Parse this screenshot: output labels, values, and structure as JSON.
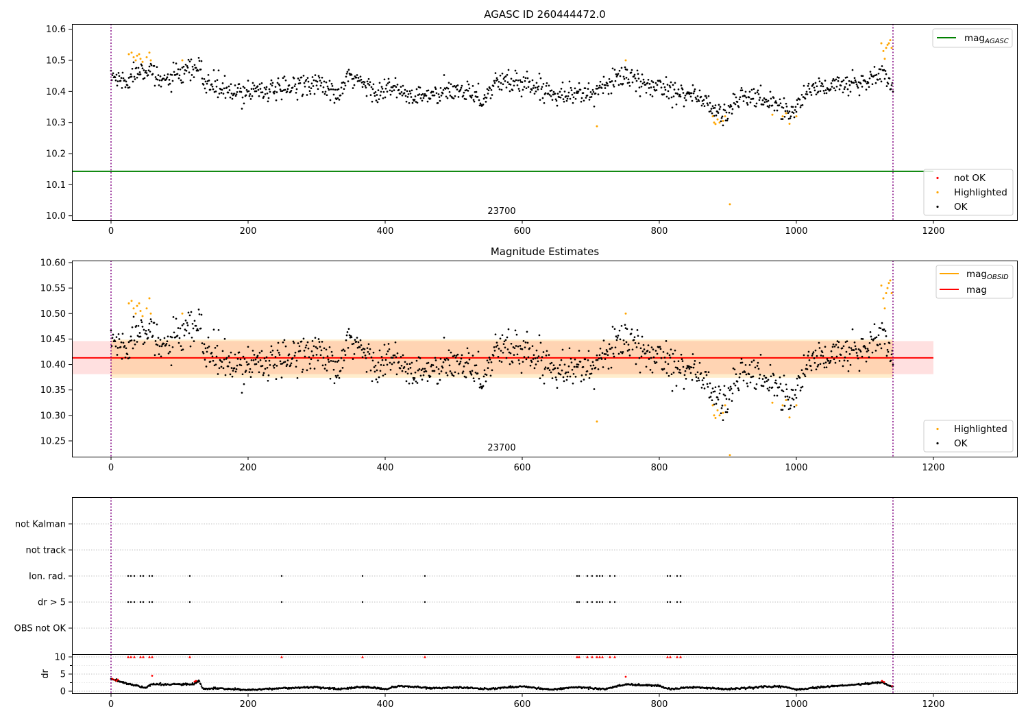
{
  "chart_data": [
    {
      "type": "scatter",
      "title": "AGASC ID 260444472.0",
      "xlabel": "",
      "ylabel": "",
      "xlim": [
        -57,
        1323
      ],
      "ylim": [
        9.986,
        10.617
      ],
      "xticks": [
        0,
        200,
        400,
        600,
        800,
        1000,
        1200
      ],
      "yticks": [
        10.0,
        10.1,
        10.2,
        10.3,
        10.4,
        10.5,
        10.6
      ],
      "ytick_decimals": 1,
      "obsid_label": "23700",
      "obsid_label_x": 570,
      "vlines": [
        0,
        1141
      ],
      "hlines": [
        {
          "name": "mag_AGASC",
          "value": 10.143,
          "color": "#008000"
        }
      ],
      "legend_lines": [
        {
          "label": "mag",
          "sub": "AGASC",
          "color": "#008000"
        }
      ],
      "legend_points": [
        {
          "label": "not OK",
          "color": "#ff0000"
        },
        {
          "label": "Highlighted",
          "color": "#ffa500"
        },
        {
          "label": "OK",
          "color": "#000000"
        }
      ],
      "highlighted_points": [
        [
          26,
          10.52
        ],
        [
          30,
          10.525
        ],
        [
          33,
          10.51
        ],
        [
          36,
          10.5
        ],
        [
          38,
          10.515
        ],
        [
          41,
          10.52
        ],
        [
          43,
          10.505
        ],
        [
          46,
          10.495
        ],
        [
          52,
          10.51
        ],
        [
          56,
          10.525
        ],
        [
          58,
          10.5
        ],
        [
          104,
          10.5
        ],
        [
          709,
          10.288
        ],
        [
          751,
          10.5
        ],
        [
          878,
          10.32
        ],
        [
          880,
          10.3
        ],
        [
          882,
          10.295
        ],
        [
          885,
          10.31
        ],
        [
          888,
          10.3
        ],
        [
          893,
          10.305
        ],
        [
          896,
          10.32
        ],
        [
          903,
          10.037
        ],
        [
          965,
          10.325
        ],
        [
          980,
          10.32
        ],
        [
          985,
          10.33
        ],
        [
          990,
          10.296
        ],
        [
          1000,
          10.32
        ],
        [
          1124,
          10.555
        ],
        [
          1127,
          10.53
        ],
        [
          1129,
          10.505
        ],
        [
          1131,
          10.54
        ],
        [
          1133,
          10.55
        ],
        [
          1135,
          10.555
        ],
        [
          1137,
          10.565
        ],
        [
          1139,
          10.54
        ]
      ],
      "ok_trend": [
        [
          0,
          10.45
        ],
        [
          20,
          10.43
        ],
        [
          45,
          10.48
        ],
        [
          60,
          10.47
        ],
        [
          65,
          10.43
        ],
        [
          100,
          10.45
        ],
        [
          130,
          10.48
        ],
        [
          135,
          10.43
        ],
        [
          160,
          10.41
        ],
        [
          180,
          10.39
        ],
        [
          210,
          10.41
        ],
        [
          250,
          10.4
        ],
        [
          280,
          10.43
        ],
        [
          310,
          10.42
        ],
        [
          330,
          10.38
        ],
        [
          350,
          10.45
        ],
        [
          370,
          10.42
        ],
        [
          390,
          10.4
        ],
        [
          410,
          10.41
        ],
        [
          440,
          10.38
        ],
        [
          480,
          10.39
        ],
        [
          520,
          10.41
        ],
        [
          545,
          10.37
        ],
        [
          560,
          10.43
        ],
        [
          600,
          10.43
        ],
        [
          640,
          10.4
        ],
        [
          690,
          10.39
        ],
        [
          720,
          10.41
        ],
        [
          745,
          10.46
        ],
        [
          770,
          10.42
        ],
        [
          800,
          10.42
        ],
        [
          830,
          10.4
        ],
        [
          860,
          10.38
        ],
        [
          885,
          10.33
        ],
        [
          900,
          10.33
        ],
        [
          920,
          10.39
        ],
        [
          950,
          10.37
        ],
        [
          970,
          10.37
        ],
        [
          985,
          10.33
        ],
        [
          1000,
          10.35
        ],
        [
          1020,
          10.41
        ],
        [
          1060,
          10.42
        ],
        [
          1100,
          10.43
        ],
        [
          1125,
          10.46
        ],
        [
          1141,
          10.41
        ]
      ]
    },
    {
      "type": "scatter",
      "title": "Magnitude Estimates",
      "xlabel": "",
      "ylabel": "",
      "xlim": [
        -57,
        1323
      ],
      "ylim": [
        10.219,
        10.604
      ],
      "xticks": [
        0,
        200,
        400,
        600,
        800,
        1000,
        1200
      ],
      "yticks": [
        10.25,
        10.3,
        10.35,
        10.4,
        10.45,
        10.5,
        10.55,
        10.6
      ],
      "ytick_decimals": 2,
      "obsid_label": "23700",
      "obsid_label_x": 570,
      "vlines": [
        0,
        1141
      ],
      "band_mag": {
        "xmin": -57,
        "xmax": 1200,
        "low": 10.381,
        "high": 10.446,
        "mean": 10.413
      },
      "band_obsid": {
        "xmin": 0,
        "xmax": 1141,
        "low": 10.374,
        "high": 10.449
      },
      "legend_lines": [
        {
          "label": "mag",
          "sub": "OBSID",
          "color": "#ffa500"
        },
        {
          "label": "mag",
          "sub": "",
          "color": "#ff0000"
        }
      ],
      "legend_points": [
        {
          "label": "Highlighted",
          "color": "#ffa500"
        },
        {
          "label": "OK",
          "color": "#000000"
        }
      ],
      "highlighted_points": [
        [
          26,
          10.52
        ],
        [
          30,
          10.525
        ],
        [
          33,
          10.51
        ],
        [
          36,
          10.5
        ],
        [
          38,
          10.515
        ],
        [
          41,
          10.52
        ],
        [
          43,
          10.505
        ],
        [
          46,
          10.495
        ],
        [
          52,
          10.51
        ],
        [
          56,
          10.53
        ],
        [
          58,
          10.5
        ],
        [
          104,
          10.5
        ],
        [
          709,
          10.288
        ],
        [
          751,
          10.5
        ],
        [
          878,
          10.32
        ],
        [
          880,
          10.3
        ],
        [
          882,
          10.295
        ],
        [
          885,
          10.31
        ],
        [
          888,
          10.3
        ],
        [
          893,
          10.305
        ],
        [
          896,
          10.32
        ],
        [
          903,
          10.222
        ],
        [
          965,
          10.325
        ],
        [
          980,
          10.32
        ],
        [
          985,
          10.33
        ],
        [
          990,
          10.296
        ],
        [
          1000,
          10.32
        ],
        [
          1124,
          10.555
        ],
        [
          1127,
          10.53
        ],
        [
          1129,
          10.51
        ],
        [
          1131,
          10.54
        ],
        [
          1133,
          10.55
        ],
        [
          1135,
          10.56
        ],
        [
          1137,
          10.565
        ],
        [
          1139,
          10.54
        ]
      ],
      "ok_trend": [
        [
          0,
          10.45
        ],
        [
          20,
          10.43
        ],
        [
          45,
          10.48
        ],
        [
          60,
          10.47
        ],
        [
          65,
          10.43
        ],
        [
          100,
          10.45
        ],
        [
          130,
          10.48
        ],
        [
          135,
          10.43
        ],
        [
          160,
          10.41
        ],
        [
          180,
          10.39
        ],
        [
          210,
          10.41
        ],
        [
          250,
          10.4
        ],
        [
          280,
          10.43
        ],
        [
          310,
          10.42
        ],
        [
          330,
          10.38
        ],
        [
          350,
          10.45
        ],
        [
          370,
          10.42
        ],
        [
          390,
          10.4
        ],
        [
          410,
          10.41
        ],
        [
          440,
          10.38
        ],
        [
          480,
          10.39
        ],
        [
          520,
          10.41
        ],
        [
          545,
          10.37
        ],
        [
          560,
          10.43
        ],
        [
          600,
          10.43
        ],
        [
          640,
          10.4
        ],
        [
          690,
          10.39
        ],
        [
          720,
          10.41
        ],
        [
          745,
          10.46
        ],
        [
          770,
          10.42
        ],
        [
          800,
          10.42
        ],
        [
          830,
          10.4
        ],
        [
          860,
          10.38
        ],
        [
          885,
          10.33
        ],
        [
          900,
          10.33
        ],
        [
          920,
          10.39
        ],
        [
          950,
          10.37
        ],
        [
          970,
          10.37
        ],
        [
          985,
          10.33
        ],
        [
          1000,
          10.35
        ],
        [
          1020,
          10.41
        ],
        [
          1060,
          10.42
        ],
        [
          1100,
          10.43
        ],
        [
          1125,
          10.46
        ],
        [
          1141,
          10.41
        ]
      ]
    },
    {
      "type": "scatter",
      "title": "",
      "xlabel": "",
      "xlim": [
        -57,
        1323
      ],
      "xticks": [
        0,
        200,
        400,
        600,
        800,
        1000,
        1200
      ],
      "vlines": [
        0,
        1141
      ],
      "flag_rows": [
        "not Kalman",
        "not track",
        "Ion. rad.",
        "dr > 5",
        "OBS not OK"
      ],
      "flag_x": [
        25,
        29,
        34,
        43,
        47,
        56,
        60,
        115,
        249,
        367,
        458,
        680,
        683,
        695,
        702,
        709,
        713,
        717,
        728,
        735,
        812,
        816,
        826,
        831
      ],
      "dr_panel": {
        "ylabel": "dr",
        "ylim": [
          -0.6,
          10.6
        ],
        "yticks": [
          0,
          5,
          10
        ],
        "minor_yticks": [
          2.5,
          7.5
        ],
        "clip_value": 10,
        "red_points": [
          [
            2,
            3.6
          ],
          [
            5,
            3.3
          ],
          [
            8,
            3.0
          ],
          [
            10,
            3.4
          ],
          [
            60,
            4.5
          ],
          [
            122,
            2.8
          ],
          [
            124,
            3.0
          ],
          [
            751,
            4.2
          ],
          [
            1125,
            3.0
          ],
          [
            1128,
            2.7
          ],
          [
            1140,
            1.5
          ]
        ],
        "trend": [
          [
            0,
            3.5
          ],
          [
            10,
            3.0
          ],
          [
            25,
            2.2
          ],
          [
            50,
            1.0
          ],
          [
            60,
            2.0
          ],
          [
            120,
            2.0
          ],
          [
            128,
            3.0
          ],
          [
            135,
            0.6
          ],
          [
            150,
            0.8
          ],
          [
            200,
            0.4
          ],
          [
            240,
            0.8
          ],
          [
            300,
            1.2
          ],
          [
            330,
            0.6
          ],
          [
            370,
            1.3
          ],
          [
            400,
            0.6
          ],
          [
            420,
            1.5
          ],
          [
            470,
            0.9
          ],
          [
            500,
            1.1
          ],
          [
            550,
            0.7
          ],
          [
            600,
            1.4
          ],
          [
            640,
            0.5
          ],
          [
            680,
            1.2
          ],
          [
            720,
            0.6
          ],
          [
            751,
            2.0
          ],
          [
            800,
            1.6
          ],
          [
            815,
            0.6
          ],
          [
            850,
            1.2
          ],
          [
            900,
            0.6
          ],
          [
            950,
            1.2
          ],
          [
            980,
            1.4
          ],
          [
            1000,
            0.5
          ],
          [
            1050,
            1.4
          ],
          [
            1080,
            1.8
          ],
          [
            1125,
            2.6
          ],
          [
            1141,
            1.2
          ]
        ]
      }
    }
  ]
}
